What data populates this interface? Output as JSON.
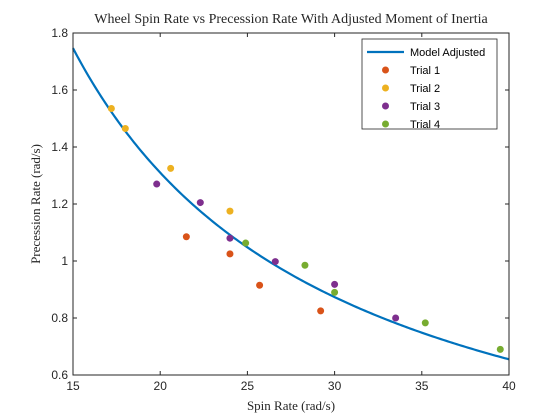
{
  "chart_data": {
    "type": "scatter",
    "title": "Wheel Spin Rate vs Precession Rate With Adjusted Moment of Inertia",
    "xlabel": "Spin Rate (rad/s)",
    "ylabel": "Precession Rate (rad/s)",
    "xlim": [
      15,
      40
    ],
    "ylim": [
      0.6,
      1.8
    ],
    "xticks": [
      15,
      20,
      25,
      30,
      35,
      40
    ],
    "yticks": [
      0.6,
      0.8,
      1,
      1.2,
      1.4,
      1.6,
      1.8
    ],
    "xtick_labels": [
      "15",
      "20",
      "25",
      "30",
      "35",
      "40"
    ],
    "ytick_labels": [
      "0.6",
      "0.8",
      "1",
      "1.2",
      "1.4",
      "1.6",
      "1.8"
    ],
    "grid": false,
    "legend_position": "top-right",
    "model": {
      "name": "Model Adjusted",
      "type": "line",
      "color": "#0072BD",
      "k": 26.2,
      "x_range": [
        15,
        40
      ]
    },
    "series": [
      {
        "name": "Trial 1",
        "color": "#D95319",
        "points": [
          [
            21.5,
            1.085
          ],
          [
            24.0,
            1.025
          ],
          [
            25.7,
            0.915
          ],
          [
            29.2,
            0.825
          ]
        ]
      },
      {
        "name": "Trial 2",
        "color": "#EDB120",
        "points": [
          [
            17.2,
            1.535
          ],
          [
            18.0,
            1.465
          ],
          [
            20.6,
            1.325
          ],
          [
            24.0,
            1.175
          ]
        ]
      },
      {
        "name": "Trial 3",
        "color": "#7E2F8E",
        "points": [
          [
            19.8,
            1.27
          ],
          [
            22.3,
            1.205
          ],
          [
            24.0,
            1.08
          ],
          [
            26.6,
            0.998
          ],
          [
            30.0,
            0.918
          ],
          [
            33.5,
            0.8
          ]
        ]
      },
      {
        "name": "Trial 4",
        "color": "#77AC30",
        "points": [
          [
            24.9,
            1.063
          ],
          [
            28.3,
            0.985
          ],
          [
            30.0,
            0.89
          ],
          [
            35.2,
            0.783
          ],
          [
            39.5,
            0.69
          ]
        ]
      }
    ]
  }
}
